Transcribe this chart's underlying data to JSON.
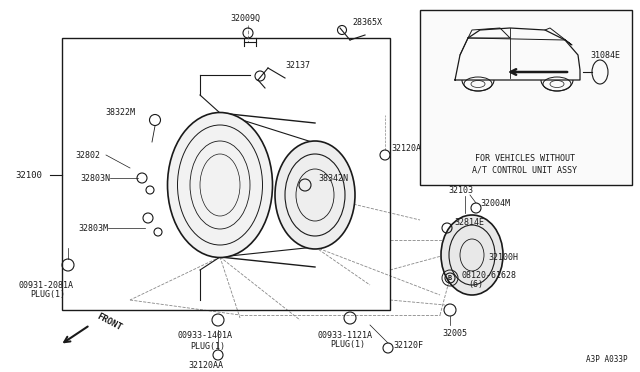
{
  "bg_color": "#ffffff",
  "line_color": "#1a1a1a",
  "light_line_color": "#888888",
  "diagram_code": "A3P A033P",
  "inset_text_line1": "FOR VEHICLES WITHOUT",
  "inset_text_line2": "A/T CONTROL UNIT ASSY",
  "front_label": "FRONT"
}
